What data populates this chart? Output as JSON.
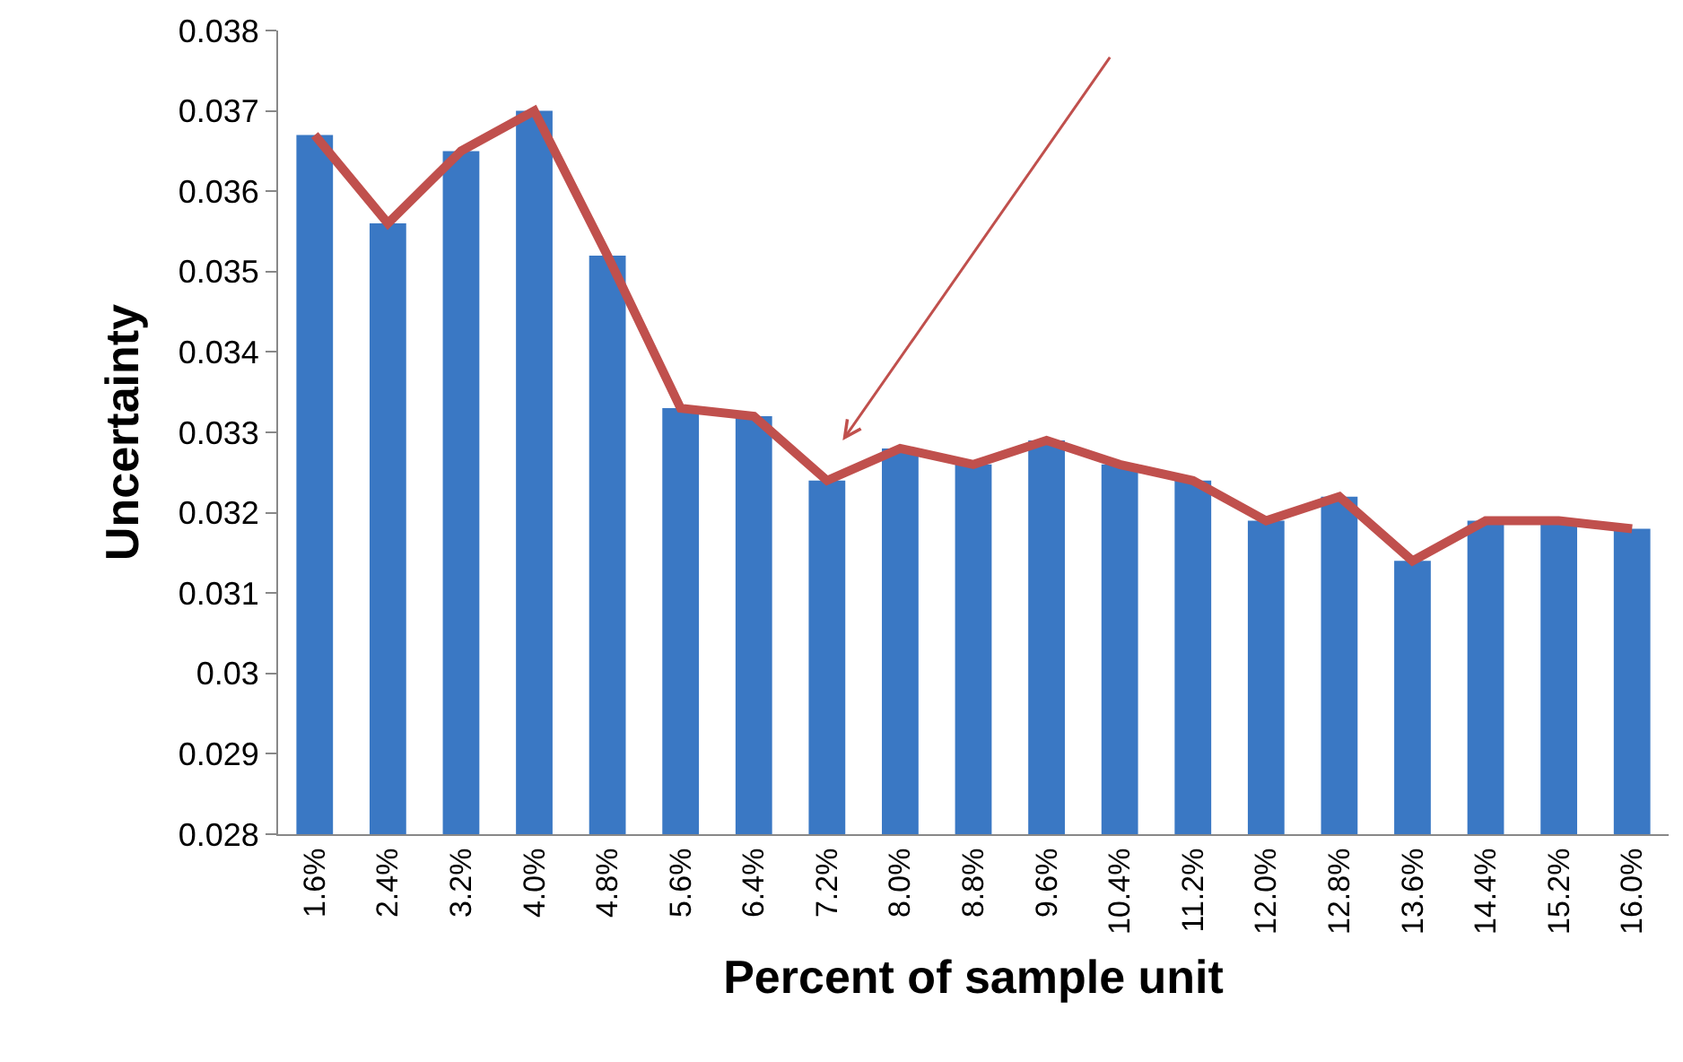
{
  "chart_data": {
    "type": "bar",
    "xlabel": "Percent of sample unit",
    "ylabel": "Uncertainty",
    "categories": [
      "1.6%",
      "2.4%",
      "3.2%",
      "4.0%",
      "4.8%",
      "5.6%",
      "6.4%",
      "7.2%",
      "8.0%",
      "8.8%",
      "9.6%",
      "10.4%",
      "11.2%",
      "12.0%",
      "12.8%",
      "13.6%",
      "14.4%",
      "15.2%",
      "16.0%"
    ],
    "series": [
      {
        "color": "#3a78c4",
        "values": [
          0.0367,
          0.0356,
          0.0365,
          0.037,
          0.0352,
          0.0333,
          0.0332,
          0.0324,
          0.0328,
          0.0326,
          0.0329,
          0.0326,
          0.0324,
          0.0319,
          0.0322,
          0.0314,
          0.0319,
          0.0319,
          0.0318
        ]
      },
      {
        "type": "line",
        "color": "#c0504d",
        "marker": "none",
        "values": [
          0.0367,
          0.0356,
          0.0365,
          0.037,
          0.0352,
          0.0333,
          0.0332,
          0.0324,
          0.0328,
          0.0326,
          0.0329,
          0.0326,
          0.0324,
          0.0319,
          0.0322,
          0.0314,
          0.0319,
          0.0319,
          0.0318
        ]
      }
    ],
    "ylim": [
      0.028,
      0.038
    ],
    "yticks": [
      0.028,
      0.029,
      0.03,
      0.031,
      0.032,
      0.033,
      0.034,
      0.035,
      0.036,
      0.037,
      0.038
    ]
  }
}
